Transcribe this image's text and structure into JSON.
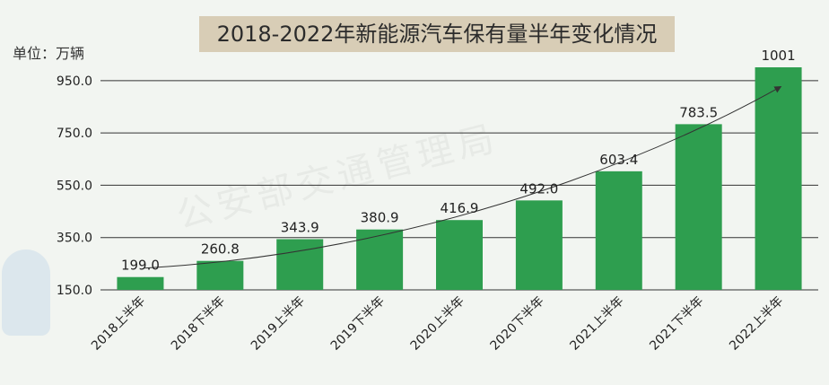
{
  "chart_data": {
    "type": "bar",
    "title": "2018-2022年新能源汽车保有量半年变化情况",
    "unit_label": "单位：万辆",
    "categories": [
      "2018上半年",
      "2018下半年",
      "2019上半年",
      "2019下半年",
      "2020上半年",
      "2020下半年",
      "2021上半年",
      "2021下半年",
      "2022上半年"
    ],
    "values": [
      199.0,
      260.8,
      343.9,
      380.9,
      416.9,
      492.0,
      603.4,
      783.5,
      1001
    ],
    "value_labels": [
      "199.0",
      "260.8",
      "343.9",
      "380.9",
      "416.9",
      "492.0",
      "603.4",
      "783.5",
      "1001"
    ],
    "yticks": [
      "150.0",
      "350.0",
      "550.0",
      "750.0",
      "950.0"
    ],
    "ytick_values": [
      150,
      350,
      550,
      750,
      950
    ],
    "ylim": [
      150,
      1025
    ],
    "grid": true,
    "trend_arrow": true,
    "watermark": "公安部交通管理局",
    "colors": {
      "bar": "#2e9e4f",
      "grid": "#333333",
      "background": "#f2f5f1",
      "title_box": "#d8cdb6"
    }
  }
}
